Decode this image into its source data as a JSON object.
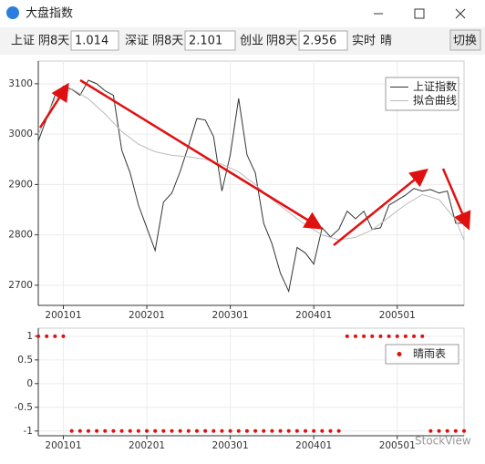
{
  "window": {
    "title": "大盘指数"
  },
  "toolbar": {
    "indices": [
      {
        "name": "上证",
        "trend": "阴8天",
        "value": 1.014
      },
      {
        "name": "深证",
        "trend": "阴8天",
        "value": 2.101
      },
      {
        "name": "创业",
        "trend": "阴8天",
        "value": 2.956
      }
    ],
    "realtime_label": "实时",
    "realtime_value": "晴",
    "button": "切换"
  },
  "watermark": "StockView",
  "chart_data": [
    {
      "type": "line",
      "legend": "upper right",
      "grid": true,
      "xlim": [
        0,
        102
      ],
      "ylim": [
        2660,
        3145
      ],
      "yticks": [
        2700,
        2800,
        2900,
        3000,
        3100
      ],
      "xticks": [
        {
          "value": 6,
          "label": "200101"
        },
        {
          "value": 26,
          "label": "200201"
        },
        {
          "value": 46,
          "label": "200301"
        },
        {
          "value": 66,
          "label": "200401"
        },
        {
          "value": 86,
          "label": "200501"
        }
      ],
      "series": [
        {
          "name": "上证指数",
          "color": "#333333",
          "x": [
            0,
            2,
            4,
            6,
            8,
            10,
            12,
            14,
            16,
            18,
            20,
            22,
            24,
            26,
            28,
            30,
            32,
            34,
            36,
            38,
            40,
            42,
            44,
            46,
            48,
            50,
            52,
            54,
            56,
            58,
            60,
            62,
            64,
            66,
            68,
            70,
            72,
            74,
            76,
            78,
            80,
            82,
            84,
            86,
            88,
            90,
            92,
            94,
            96,
            98,
            100,
            102
          ],
          "values": [
            2986,
            3031,
            3077,
            3095,
            3089,
            3077,
            3107,
            3100,
            3086,
            3077,
            2968,
            2923,
            2859,
            2814,
            2769,
            2865,
            2883,
            2926,
            2977,
            3031,
            3028,
            2995,
            2887,
            2959,
            3071,
            2959,
            2923,
            2823,
            2782,
            2724,
            2688,
            2775,
            2764,
            2742,
            2814,
            2796,
            2811,
            2847,
            2832,
            2847,
            2811,
            2814,
            2859,
            2869,
            2879,
            2892,
            2887,
            2890,
            2883,
            2887,
            2823,
            2823
          ]
        },
        {
          "name": "拟合曲线",
          "color": "#bbbbbb",
          "x": [
            0,
            4,
            8,
            12,
            16,
            20,
            24,
            28,
            32,
            36,
            40,
            44,
            48,
            52,
            56,
            60,
            64,
            68,
            72,
            76,
            80,
            84,
            88,
            92,
            96,
            100,
            102
          ],
          "values": [
            3000,
            3070,
            3090,
            3070,
            3040,
            3005,
            2980,
            2965,
            2958,
            2955,
            2950,
            2940,
            2925,
            2900,
            2870,
            2845,
            2820,
            2800,
            2790,
            2795,
            2810,
            2835,
            2860,
            2880,
            2870,
            2830,
            2790
          ]
        }
      ]
    },
    {
      "type": "scatter",
      "legend": "upper right",
      "grid": true,
      "xlim": [
        0,
        102
      ],
      "ylim": [
        -1.1,
        1.17
      ],
      "yticks": [
        -1,
        -0.5,
        0,
        0.5,
        1
      ],
      "xticks": [
        {
          "value": 6,
          "label": "200101"
        },
        {
          "value": 26,
          "label": "200201"
        },
        {
          "value": 46,
          "label": "200301"
        },
        {
          "value": 66,
          "label": "200401"
        },
        {
          "value": 86,
          "label": "200501"
        }
      ],
      "series": [
        {
          "name": "晴雨表",
          "color": "#e01010",
          "x": [
            0,
            2,
            4,
            6,
            8,
            10,
            12,
            14,
            16,
            18,
            20,
            22,
            24,
            26,
            28,
            30,
            32,
            34,
            36,
            38,
            40,
            42,
            44,
            46,
            48,
            50,
            52,
            54,
            56,
            58,
            60,
            62,
            64,
            66,
            68,
            70,
            72,
            74,
            76,
            78,
            80,
            82,
            84,
            86,
            88,
            90,
            92,
            94,
            96,
            98,
            100,
            102
          ],
          "values": [
            1,
            1,
            1,
            1,
            -1,
            -1,
            -1,
            -1,
            -1,
            -1,
            -1,
            -1,
            -1,
            -1,
            -1,
            -1,
            -1,
            -1,
            -1,
            -1,
            -1,
            -1,
            -1,
            -1,
            -1,
            -1,
            -1,
            -1,
            -1,
            -1,
            -1,
            -1,
            -1,
            -1,
            -1,
            -1,
            -1,
            1,
            1,
            1,
            1,
            1,
            1,
            1,
            1,
            1,
            1,
            -1,
            -1,
            -1,
            -1,
            -1
          ]
        }
      ]
    }
  ]
}
